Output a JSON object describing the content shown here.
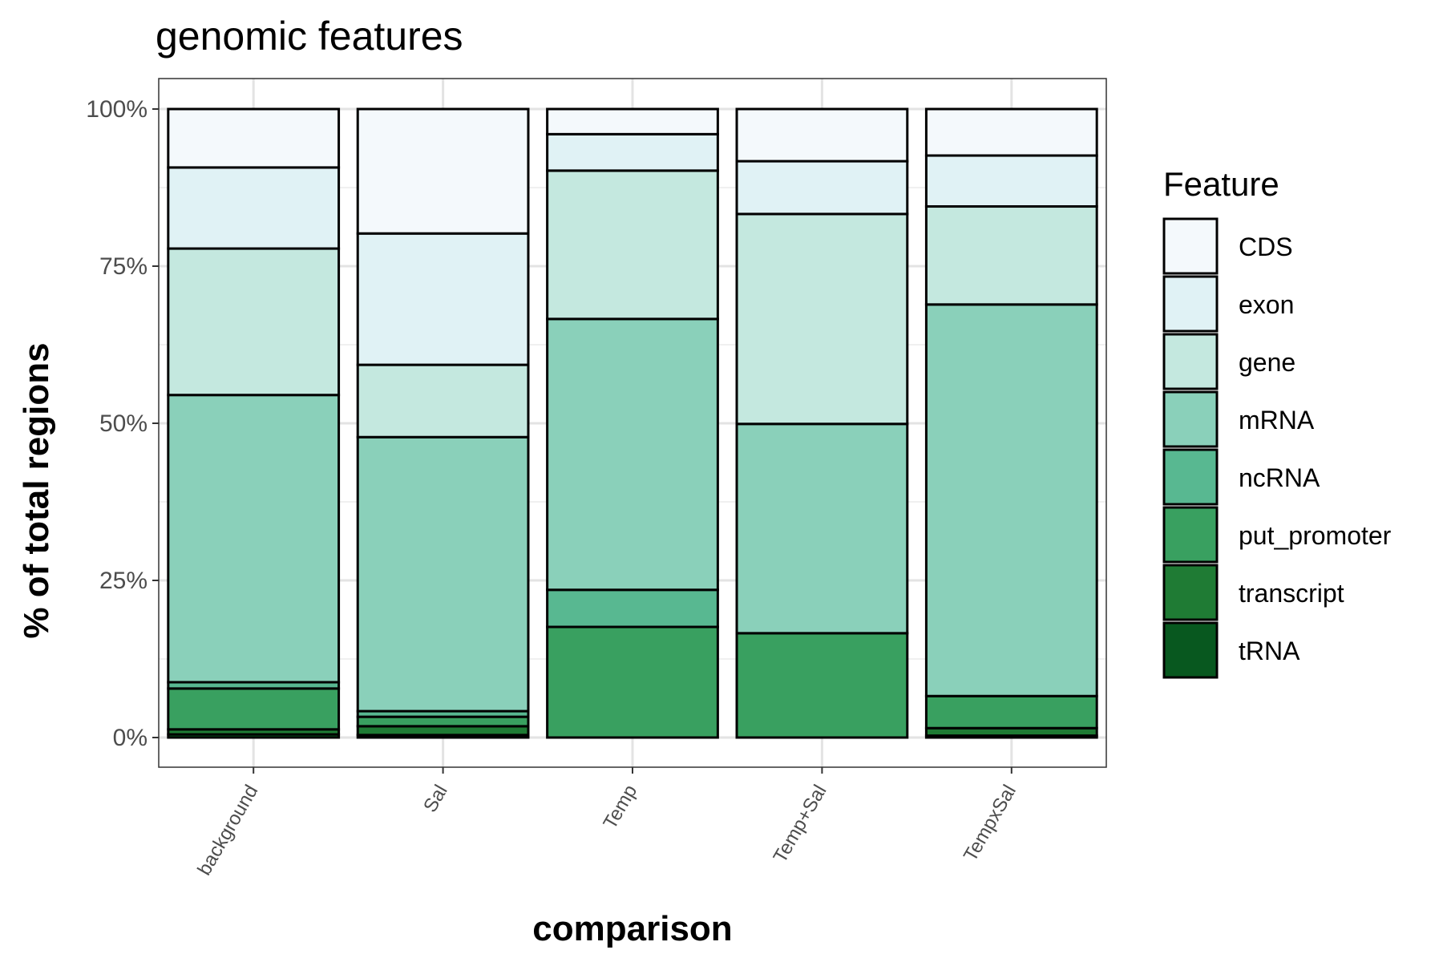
{
  "chart_data": {
    "type": "bar",
    "stacked": true,
    "title": "genomic features",
    "xlabel": "comparison",
    "ylabel": "% of total regions",
    "ylim": [
      0,
      100
    ],
    "yticks": [
      "0%",
      "25%",
      "50%",
      "75%",
      "100%"
    ],
    "ytick_values": [
      0,
      25,
      50,
      75,
      100
    ],
    "grid": true,
    "legend_title": "Feature",
    "legend_position": "right",
    "categories": [
      "background",
      "Sal",
      "Temp",
      "Temp+Sal",
      "TempxSal"
    ],
    "series": [
      {
        "name": "tRNA",
        "color": "#08581f",
        "values": [
          0.5,
          0.4,
          0,
          0,
          0.3
        ]
      },
      {
        "name": "transcript",
        "color": "#1f7b34",
        "values": [
          0.8,
          1.4,
          0,
          0,
          1.2
        ]
      },
      {
        "name": "put_promoter",
        "color": "#39a060",
        "values": [
          6.5,
          1.5,
          17.6,
          16.6,
          5.1
        ]
      },
      {
        "name": "ncRNA",
        "color": "#58b891",
        "values": [
          1.0,
          0.9,
          5.9,
          0,
          0
        ]
      },
      {
        "name": "mRNA",
        "color": "#8ad0ba",
        "values": [
          45.7,
          43.6,
          43.1,
          33.3,
          62.3
        ]
      },
      {
        "name": "gene",
        "color": "#c4e8df",
        "values": [
          23.3,
          11.5,
          23.6,
          33.4,
          15.6
        ]
      },
      {
        "name": "exon",
        "color": "#e0f2f5",
        "values": [
          12.9,
          20.9,
          5.8,
          8.4,
          8.1
        ]
      },
      {
        "name": "CDS",
        "color": "#f4f9fc",
        "values": [
          9.3,
          19.8,
          4.0,
          8.3,
          7.4
        ]
      }
    ],
    "legend_order": [
      "CDS",
      "exon",
      "gene",
      "mRNA",
      "ncRNA",
      "put_promoter",
      "transcript",
      "tRNA"
    ]
  }
}
